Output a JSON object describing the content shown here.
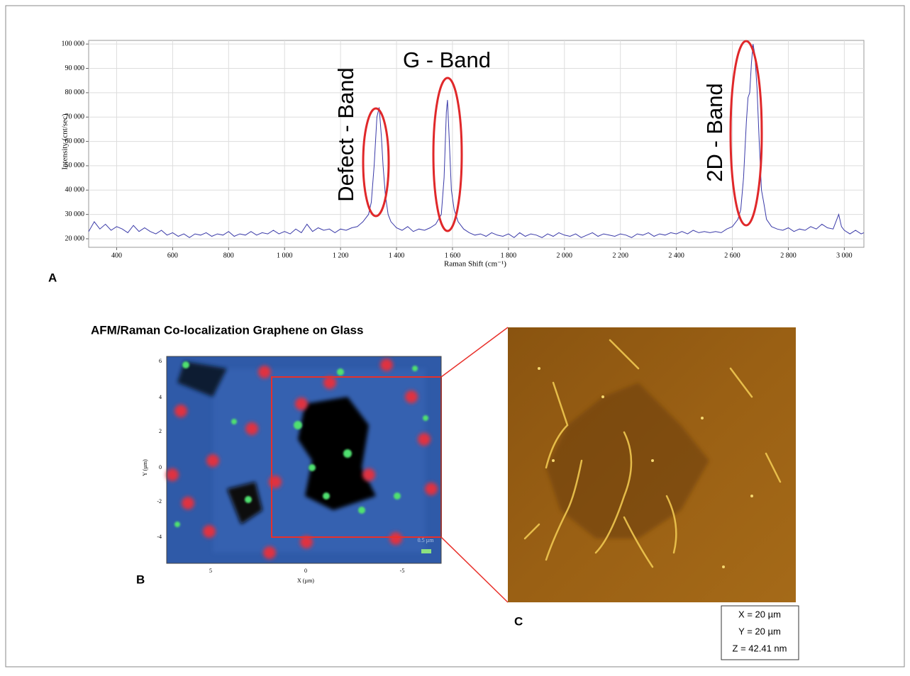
{
  "chart_data": {
    "type": "line",
    "x_label": "Raman Shift (cm⁻¹)",
    "y_label": "Intensity (cnt/sec)",
    "annotations": [
      "Defect - Band",
      "G - Band",
      "2D - Band"
    ],
    "x": [
      300,
      320,
      340,
      360,
      380,
      400,
      420,
      440,
      460,
      480,
      500,
      520,
      540,
      560,
      580,
      600,
      620,
      640,
      660,
      680,
      700,
      720,
      740,
      760,
      780,
      800,
      820,
      840,
      860,
      880,
      900,
      920,
      940,
      960,
      980,
      1000,
      1020,
      1040,
      1060,
      1080,
      1100,
      1120,
      1140,
      1160,
      1180,
      1200,
      1220,
      1240,
      1260,
      1280,
      1300,
      1310,
      1320,
      1330,
      1338,
      1346,
      1352,
      1360,
      1370,
      1380,
      1400,
      1420,
      1440,
      1460,
      1480,
      1500,
      1520,
      1540,
      1560,
      1570,
      1578,
      1582,
      1588,
      1596,
      1606,
      1620,
      1640,
      1660,
      1680,
      1700,
      1720,
      1740,
      1760,
      1780,
      1800,
      1820,
      1840,
      1860,
      1880,
      1900,
      1920,
      1940,
      1960,
      1980,
      2000,
      2020,
      2040,
      2060,
      2080,
      2100,
      2120,
      2140,
      2160,
      2180,
      2200,
      2220,
      2240,
      2260,
      2280,
      2300,
      2320,
      2340,
      2360,
      2380,
      2400,
      2420,
      2440,
      2460,
      2480,
      2500,
      2520,
      2540,
      2560,
      2580,
      2600,
      2620,
      2630,
      2640,
      2650,
      2656,
      2662,
      2668,
      2674,
      2680,
      2688,
      2696,
      2704,
      2712,
      2722,
      2740,
      2760,
      2780,
      2800,
      2820,
      2840,
      2860,
      2880,
      2900,
      2920,
      2940,
      2960,
      2980,
      2990,
      3000,
      3020,
      3040,
      3060,
      3070
    ],
    "values": [
      23000,
      27000,
      24000,
      26000,
      23500,
      25000,
      24000,
      22500,
      25500,
      23000,
      24500,
      23000,
      22000,
      23500,
      21500,
      22500,
      21000,
      22000,
      20500,
      22000,
      21500,
      22500,
      21000,
      22000,
      21500,
      23000,
      21000,
      22000,
      21500,
      23000,
      21500,
      22500,
      22000,
      23500,
      22000,
      23000,
      22000,
      24000,
      22500,
      26000,
      23000,
      24500,
      23500,
      24000,
      22500,
      24000,
      23500,
      24500,
      25000,
      27000,
      30000,
      35000,
      50000,
      70000,
      74000,
      62000,
      50000,
      38000,
      30000,
      27000,
      24500,
      23500,
      25000,
      23000,
      24000,
      23500,
      24500,
      26000,
      30000,
      45000,
      72000,
      77000,
      62000,
      40000,
      32000,
      27000,
      24000,
      22500,
      21500,
      22000,
      21000,
      22500,
      21500,
      21000,
      22000,
      20500,
      22500,
      21000,
      22000,
      21500,
      20500,
      22000,
      21000,
      22500,
      21500,
      21000,
      22000,
      20500,
      21500,
      22500,
      21000,
      22000,
      21500,
      21000,
      22000,
      21500,
      20500,
      22000,
      21500,
      22500,
      21000,
      22000,
      21500,
      22500,
      22000,
      23000,
      22000,
      23500,
      22500,
      23000,
      22500,
      23000,
      22500,
      24000,
      25000,
      28000,
      32000,
      45000,
      68000,
      78000,
      80000,
      92000,
      100000,
      96000,
      82000,
      60000,
      40000,
      35000,
      28000,
      25000,
      24000,
      23500,
      24500,
      23000,
      24000,
      23500,
      25000,
      24000,
      26000,
      24500,
      24000,
      30000,
      25000,
      23500,
      22000,
      23500,
      22000,
      22500
    ],
    "color": "#3a3aa8",
    "xlim": [
      300,
      3070
    ],
    "ylim": [
      16500,
      101500
    ],
    "xticks": [
      400,
      600,
      800,
      {
        "value": 1000,
        "label": "1 000"
      },
      {
        "value": 1200,
        "label": "1 200"
      },
      {
        "value": 1400,
        "label": "1 400"
      },
      {
        "value": 1600,
        "label": "1 600"
      },
      {
        "value": 1800,
        "label": "1 800"
      },
      {
        "value": 2000,
        "label": "2 000"
      },
      {
        "value": 2200,
        "label": "2 200"
      },
      {
        "value": 2400,
        "label": "2 400"
      },
      {
        "value": 2600,
        "label": "2 600"
      },
      {
        "value": 2800,
        "label": "2 800"
      },
      {
        "value": 3000,
        "label": "3 000"
      }
    ],
    "yticks": [
      {
        "value": 20000,
        "label": "20 000"
      },
      {
        "value": 30000,
        "label": "30 000"
      },
      {
        "value": 40000,
        "label": "40 000"
      },
      {
        "value": 50000,
        "label": "50 000"
      },
      {
        "value": 60000,
        "label": "60 000"
      },
      {
        "value": 70000,
        "label": "70 000"
      },
      {
        "value": 80000,
        "label": "80 000"
      },
      {
        "value": 90000,
        "label": "90 000"
      },
      {
        "value": 100000,
        "label": "100 000"
      }
    ],
    "grid": true
  },
  "panels": {
    "a": "A",
    "b": "B",
    "c": "C"
  },
  "panel_b": {
    "title": "AFM/Raman Co-localization Graphene on Glass",
    "x_label": "X (µm)",
    "y_label": "Y (µm)",
    "xticks": [
      "5",
      "0",
      "-5"
    ],
    "yticks": [
      "6",
      "4",
      "2",
      "0",
      "-2",
      "-4"
    ],
    "scale_bar": "0.5 µm"
  },
  "panel_c": {
    "info": [
      "X = 20 µm",
      "Y = 20 µm",
      "Z = 42.41 nm"
    ]
  }
}
